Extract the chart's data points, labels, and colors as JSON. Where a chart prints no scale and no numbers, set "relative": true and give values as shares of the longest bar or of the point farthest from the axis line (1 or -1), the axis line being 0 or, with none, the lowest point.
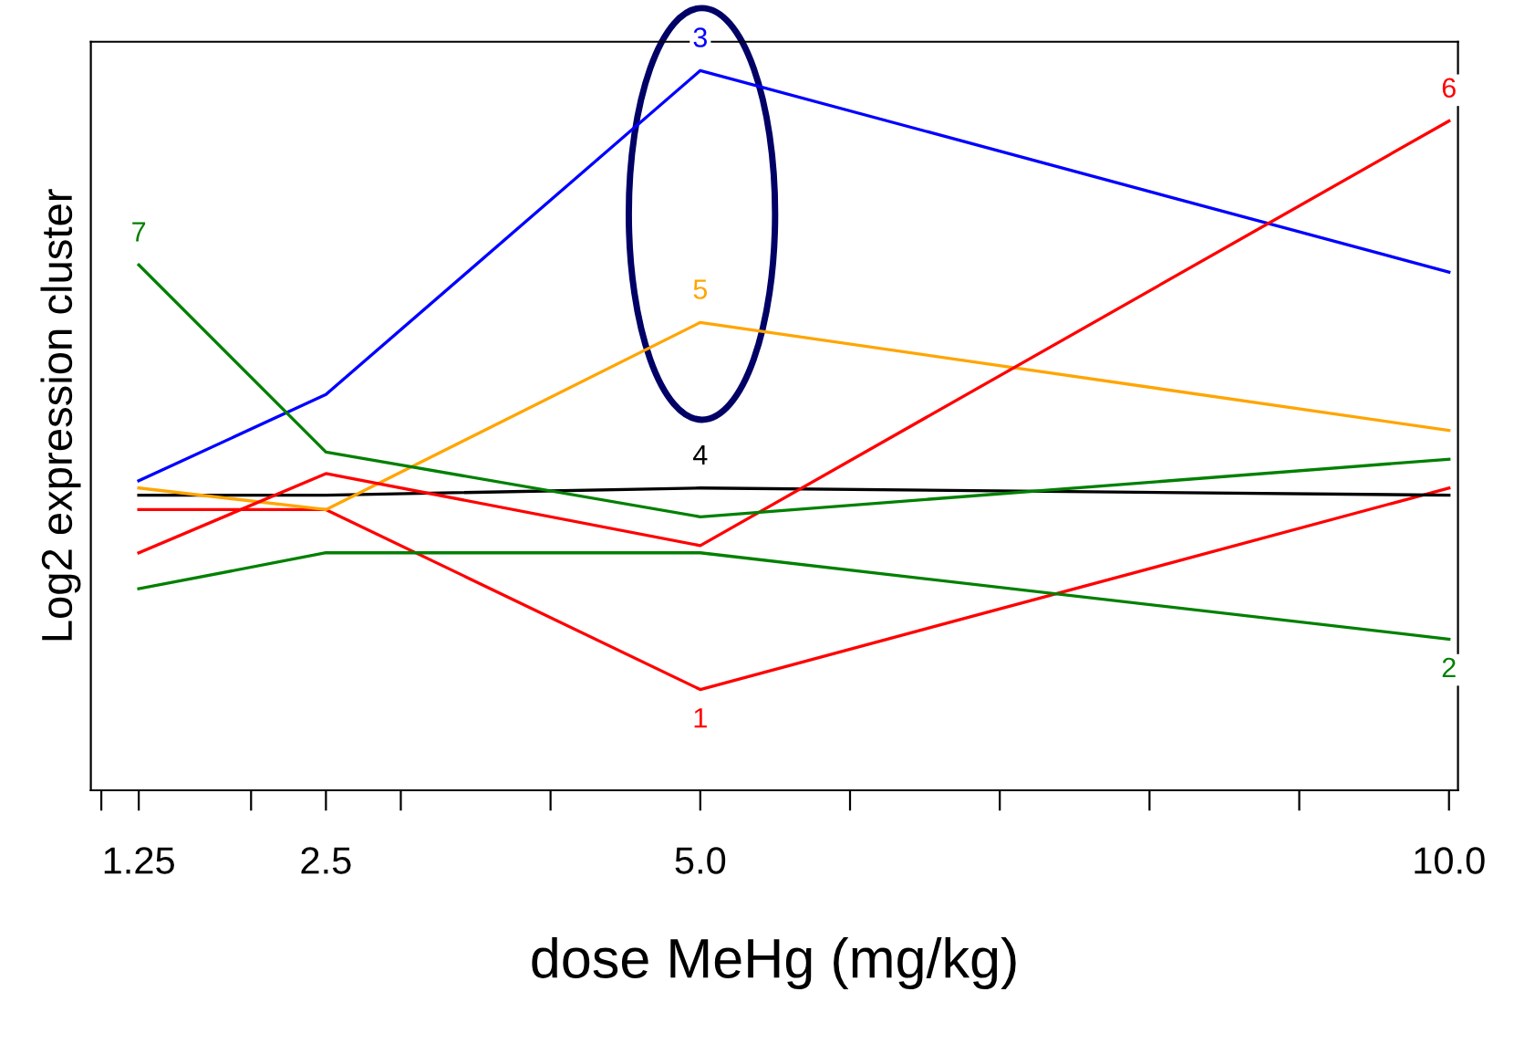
{
  "chart_data": {
    "type": "line",
    "relative": true,
    "xlabel": "dose MeHg (mg/kg)",
    "ylabel": "Log2 expression cluster",
    "x": [
      1.25,
      2.5,
      5,
      10
    ],
    "xlim": [
      0.93,
      10.06
    ],
    "xticks": [
      {
        "value": 1,
        "label": null
      },
      {
        "value": 1.25,
        "label": "1.25"
      },
      {
        "value": 2,
        "label": null
      },
      {
        "value": 2.5,
        "label": "2.5"
      },
      {
        "value": 3,
        "label": null
      },
      {
        "value": 4,
        "label": null
      },
      {
        "value": 5,
        "label": "5.0"
      },
      {
        "value": 6,
        "label": null
      },
      {
        "value": 7,
        "label": null
      },
      {
        "value": 8,
        "label": null
      },
      {
        "value": 9,
        "label": null
      },
      {
        "value": 10,
        "label": "10.0"
      }
    ],
    "grid": false,
    "legend": false,
    "series": [
      {
        "name": "1",
        "color": "#ff0000",
        "values": [
          0.39,
          0.39,
          0.14,
          0.42
        ]
      },
      {
        "name": "2",
        "color": "#008000",
        "values": [
          0.28,
          0.33,
          0.33,
          0.21
        ]
      },
      {
        "name": "3",
        "color": "#0000ff",
        "values": [
          0.43,
          0.55,
          1,
          0.72
        ]
      },
      {
        "name": "4",
        "color": "#000000",
        "values": [
          0.41,
          0.41,
          0.42,
          0.41
        ]
      },
      {
        "name": "5",
        "color": "#ffa500",
        "values": [
          0.42,
          0.39,
          0.65,
          0.5
        ]
      },
      {
        "name": "6",
        "color": "#ff0000",
        "values": [
          0.33,
          0.44,
          0.34,
          0.93
        ]
      },
      {
        "name": "7",
        "color": "#008000",
        "values": [
          0.73,
          0.47,
          0.38,
          0.46
        ]
      }
    ]
  }
}
